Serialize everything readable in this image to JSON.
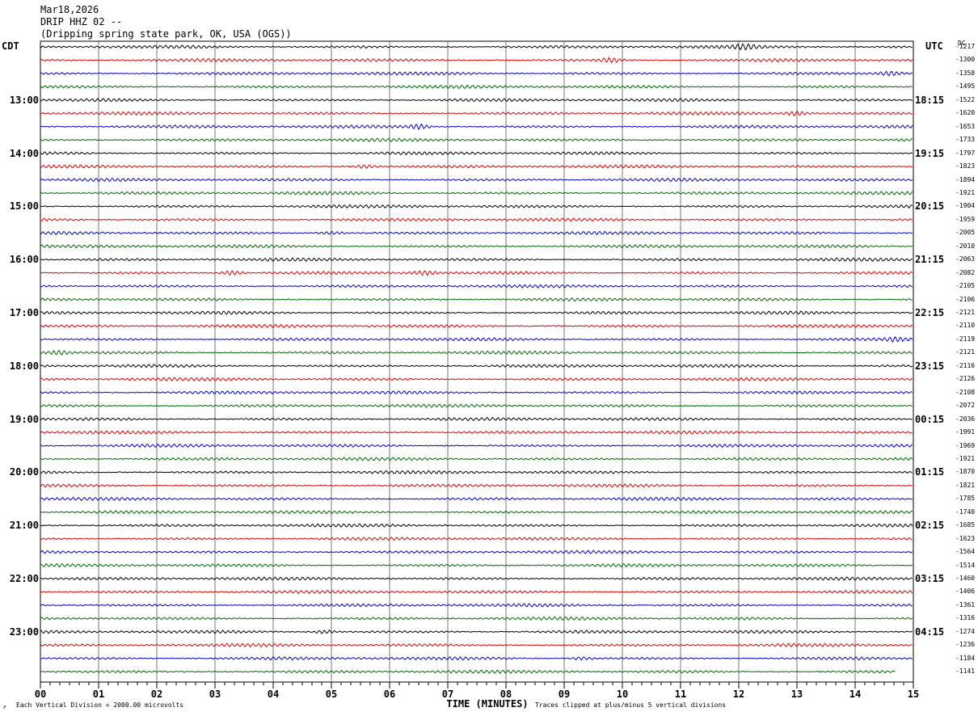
{
  "header": {
    "date": "Mar18,2026",
    "station": "DRIP HHZ 02 --",
    "location": "(Dripping spring state park, OK, USA (OGS))"
  },
  "axis": {
    "left_title": "CDT",
    "right_title": "UTC",
    "dc_title": "DC",
    "xlabel": "TIME (MINUTES)",
    "x_ticks": [
      "00",
      "01",
      "02",
      "03",
      "04",
      "05",
      "06",
      "07",
      "08",
      "09",
      "10",
      "11",
      "12",
      "13",
      "14",
      "15"
    ]
  },
  "left_hour_labels": [
    "13:00",
    "14:00",
    "15:00",
    "16:00",
    "17:00",
    "18:00",
    "19:00",
    "20:00",
    "21:00",
    "22:00",
    "23:00"
  ],
  "right_hour_labels": [
    "18:15",
    "19:15",
    "20:15",
    "21:15",
    "22:15",
    "23:15",
    "00:15",
    "01:15",
    "02:15",
    "03:15",
    "04:15"
  ],
  "footer": {
    "scale_note": "Each Vertical Division = 2000.00 microvolts",
    "clip_note": "Traces clipped at plus/minus 5 vertical divisions"
  },
  "colors": {
    "trace_cycle": [
      "#000000",
      "#dd0000",
      "#0000cc",
      "#006600"
    ],
    "grid": "#000000"
  },
  "chart_data": {
    "type": "line",
    "title": "DRIP HHZ 02 --",
    "xlabel": "TIME (MINUTES)",
    "xlim": [
      0,
      15
    ],
    "trace_count": 48,
    "minutes_per_trace": 15,
    "dc_offsets": [
      -1217,
      -1300,
      -1358,
      -1495,
      -1522,
      -1620,
      -1653,
      -1733,
      -1797,
      -1823,
      -1894,
      -1921,
      -1904,
      -1959,
      -2005,
      -2010,
      -2063,
      -2082,
      -2105,
      -2106,
      -2121,
      -2110,
      -2119,
      -2121,
      -2116,
      -2126,
      -2108,
      -2072,
      -2036,
      -1991,
      -1969,
      -1921,
      -1870,
      -1821,
      -1785,
      -1740,
      -1685,
      -1623,
      -1564,
      -1514,
      -1460,
      -1406,
      -1361,
      -1316,
      -1274,
      -1236,
      -1184,
      -1141
    ],
    "last_trace_end_minute": 14.7,
    "bursts": [
      {
        "trace": 0,
        "minute": 12.1,
        "amplitude": 2.0
      },
      {
        "trace": 1,
        "minute": 9.8,
        "amplitude": 2.2
      },
      {
        "trace": 2,
        "minute": 14.6,
        "amplitude": 2.0
      },
      {
        "trace": 5,
        "minute": 13.0,
        "amplitude": 2.2
      },
      {
        "trace": 6,
        "minute": 6.5,
        "amplitude": 2.4
      },
      {
        "trace": 9,
        "minute": 5.6,
        "amplitude": 2.0
      },
      {
        "trace": 14,
        "minute": 5.0,
        "amplitude": 1.8
      },
      {
        "trace": 17,
        "minute": 3.3,
        "amplitude": 2.4
      },
      {
        "trace": 17,
        "minute": 6.6,
        "amplitude": 2.0
      },
      {
        "trace": 22,
        "minute": 14.7,
        "amplitude": 2.0
      },
      {
        "trace": 23,
        "minute": 0.3,
        "amplitude": 2.2
      },
      {
        "trace": 44,
        "minute": 4.9,
        "amplitude": 1.8
      },
      {
        "trace": 46,
        "minute": 9.3,
        "amplitude": 1.6
      }
    ]
  }
}
